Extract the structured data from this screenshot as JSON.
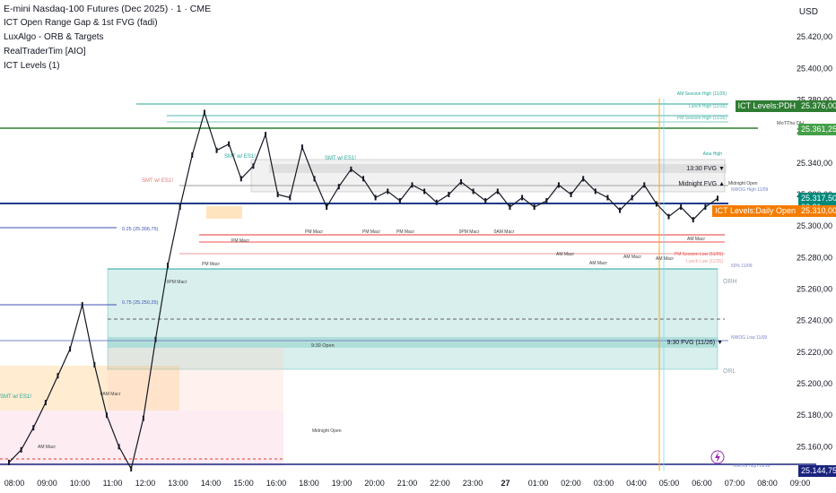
{
  "header": {
    "symbol_title": "E-mini Nasdaq-100 Futures (Dec 2025) · 1 · CME",
    "currency": "USD",
    "indicators": [
      "ICT Open Range Gap & 1st FVG (fadi)",
      "LuxAlgo - ORB & Targets",
      "RealTraderTim [AIO]",
      "ICT Levels (1)"
    ]
  },
  "price_axis": {
    "ticks": [
      25420,
      25400,
      25380,
      25360,
      25340,
      25320,
      25300,
      25280,
      25260,
      25240,
      25220,
      25200,
      25180,
      25160
    ],
    "tick_labels": [
      "25.420,00",
      "25.400,00",
      "25.380,00",
      "25.360,00",
      "25.340,00",
      "25.320,00",
      "25.300,00",
      "25.280,00",
      "25.260,00",
      "25.240,00",
      "25.220,00",
      "25.200,00",
      "25.180,00",
      "25.160,00"
    ],
    "range": [
      25142,
      25432
    ]
  },
  "time_axis": {
    "labels": [
      "08:00",
      "09:00",
      "10:00",
      "11:00",
      "12:00",
      "13:00",
      "14:00",
      "15:00",
      "16:00",
      "18:00",
      "19:00",
      "20:00",
      "21:00",
      "22:00",
      "23:00",
      "27",
      "01:00",
      "02:00",
      "03:00",
      "04:00",
      "05:00",
      "06:00",
      "07:00",
      "08:00",
      "09:00"
    ],
    "bold_label": "27"
  },
  "price_badges": [
    {
      "text": "25.376,00",
      "label": "ICT Levels:PDH",
      "price": 25376,
      "color": "#2e7d32"
    },
    {
      "text": "25.361,25",
      "label": "",
      "price": 25361.25,
      "color": "#43a047"
    },
    {
      "text": "25.317,50",
      "label": "",
      "price": 25317.5,
      "color": "#00897b"
    },
    {
      "text": "00:31",
      "label": "",
      "price": 25312,
      "color": "#00897b"
    },
    {
      "text": "25.310,00",
      "label": "ICT Levels:Daily Open",
      "price": 25310,
      "color": "#f57c00"
    },
    {
      "text": "25.144,75",
      "label": "",
      "price": 25144.75,
      "color": "#1a237e"
    }
  ],
  "chart_labels": {
    "am_session_high": "AM Session High (11/26)",
    "lunch_high": "Lunch High (11/26)",
    "pm_session_high": "PM Session High (11/26)",
    "mot_thu_dh": "MoTThu DH",
    "asia_high": "Asia High",
    "fvg_1330": "13:30 FVG ▼",
    "midnight_fvg": "Midnight FVG ▲",
    "midnight_open": "Midnight Open",
    "nwog_high": "NWOG High 11/09",
    "smt": "SMT w/ ES1!",
    "pm_session_low": "PM Session Low (11/26)",
    "lunch_low": "Lunch Low (11/26)",
    "fifty_pct": "50% 11/09",
    "orh": "ORH",
    "orl": "ORL",
    "fvg_930": "9:30 FVG (11/26) ▼",
    "nwog_low": "NWOG Low 11/09",
    "open_930": "9:30 Open",
    "midnight_open_2": "Midnight Open",
    "nwog_high_2": "NWOG High 11/16",
    "fib_025": "0.25 (25.306,75)",
    "fib_075": "0.75 (25.250,25)",
    "macro_labels": [
      "PM Macr",
      "PM Macr",
      "PM Macr",
      "PM Macr",
      "0PM Macr",
      "0AM Macr",
      "AM Macr",
      "AM Macr",
      "AM Macr",
      "AM Macr",
      "AM Macr",
      "0AM Macr",
      "AM Macr",
      "PM Macr",
      "0PM Macr"
    ]
  },
  "chart_data": {
    "type": "line",
    "title": "E-mini Nasdaq-100 Futures (Dec 2025) · 1 · CME",
    "ylabel": "USD",
    "ylim": [
      25142,
      25432
    ],
    "x_labels": [
      "08:00",
      "09:00",
      "10:00",
      "11:00",
      "12:00",
      "13:00",
      "14:00",
      "15:00",
      "16:00",
      "18:00",
      "19:00",
      "20:00",
      "21:00",
      "22:00",
      "23:00",
      "27",
      "01:00",
      "02:00",
      "03:00",
      "04:00",
      "05:00",
      "06:00",
      "07:00"
    ],
    "series": [
      {
        "values": [
          25150,
          25158,
          25172,
          25188,
          25205,
          25222,
          25250,
          25212,
          25180,
          25160,
          25146,
          25178,
          25228,
          25275,
          25312,
          25345,
          25372,
          25348,
          25352,
          25330,
          25338,
          25358,
          25320,
          25318,
          25350,
          25330,
          25312,
          25325,
          25336,
          25330,
          25318,
          25322,
          25316,
          25326,
          25322,
          25315,
          25320,
          25328,
          25322,
          25316,
          25322,
          25312,
          25318,
          25312,
          25316,
          25326,
          25320,
          25330,
          25322,
          25318,
          25310,
          25318,
          25326,
          25314,
          25306,
          25312,
          25304,
          25312,
          25317.5
        ]
      }
    ],
    "levels": [
      {
        "name": "PDH",
        "price": 25376
      },
      {
        "name": "MoTThu DH",
        "price": 25361.25
      },
      {
        "name": "Daily Open",
        "price": 25310
      },
      {
        "name": "ORH",
        "price": 25268
      },
      {
        "name": "ORL",
        "price": 25208
      },
      {
        "name": "NWOG High 11/16",
        "price": 25144.75
      }
    ]
  },
  "colors": {
    "candles": "#131722",
    "teal_zone": "#26a69a",
    "orange_zone": "#ff9800",
    "pink_zone": "#f8bbd0",
    "pdh_line": "#2e7d32",
    "blue_level": "#1e3a8a",
    "red_level": "#e53935"
  }
}
